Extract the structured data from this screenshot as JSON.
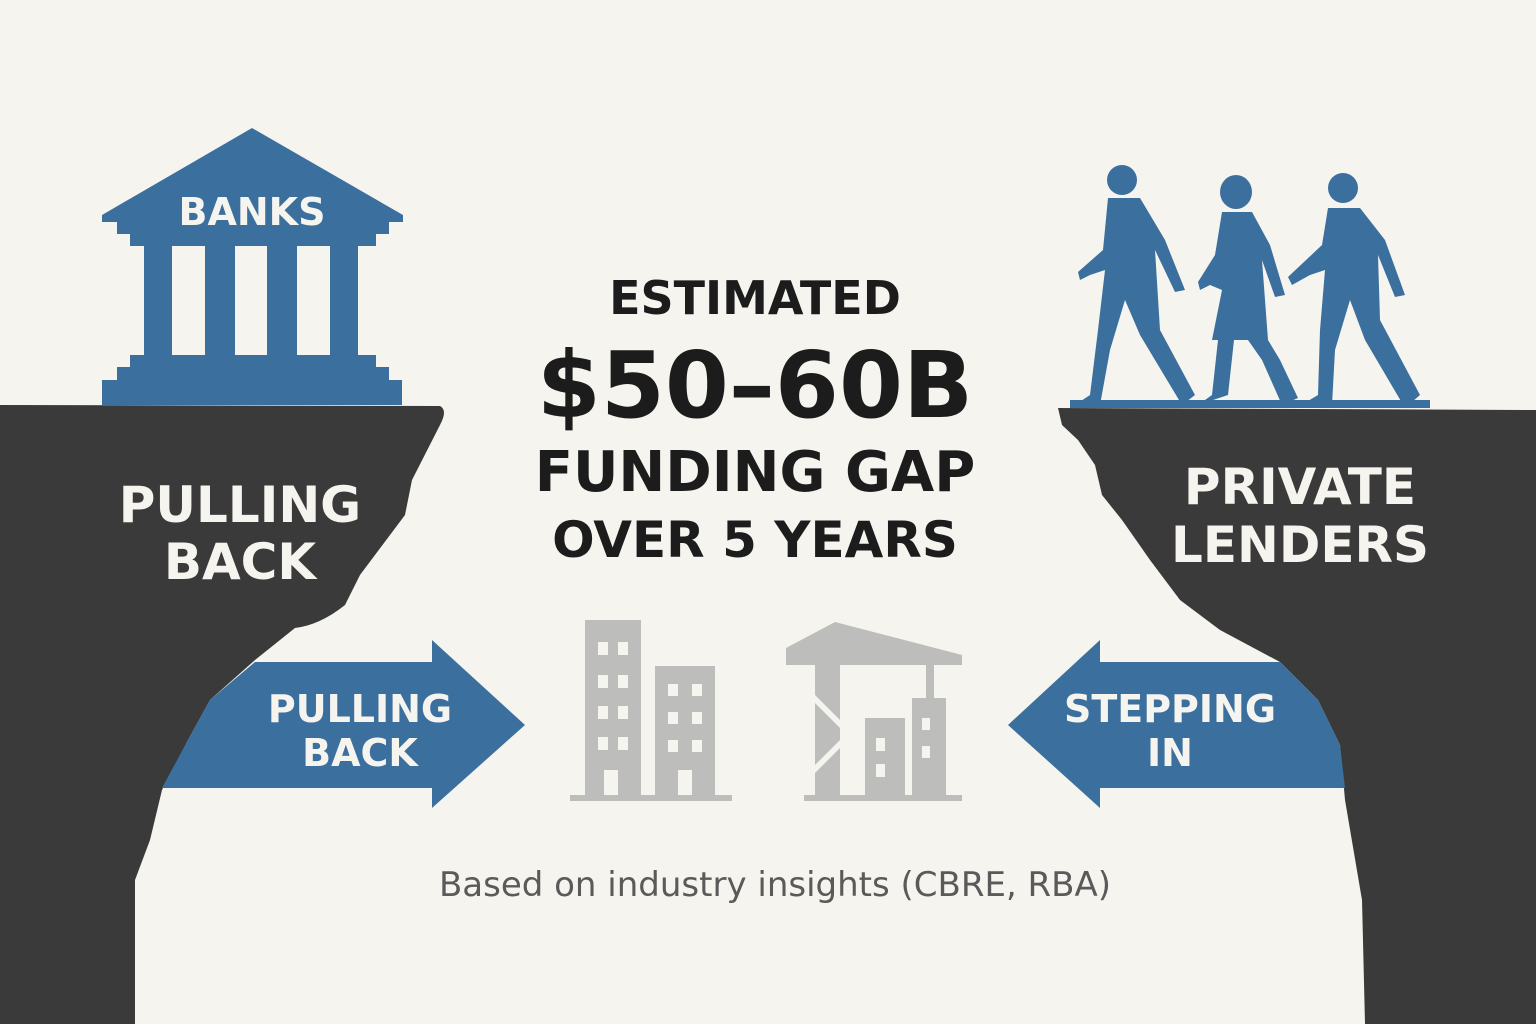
{
  "colors": {
    "background": "#f6f4ef",
    "cliff": "#3a3a3a",
    "accent_blue": "#3b6f9e",
    "building_gray": "#bdbdbb",
    "text_dark": "#1c1c1c"
  },
  "left": {
    "bank_label": "BANKS",
    "cliff_label_line1": "PULLING",
    "cliff_label_line2": "BACK",
    "arrow_line1": "PULLING",
    "arrow_line2": "BACK",
    "icon": "bank-building-icon"
  },
  "center": {
    "line1": "ESTIMATED",
    "line2": "$50–60B",
    "line3": "FUNDING GAP",
    "line4": "OVER 5 YEARS",
    "icons": [
      "office-buildings-icon",
      "construction-crane-icon"
    ]
  },
  "right": {
    "cliff_label_line1": "PRIVATE",
    "cliff_label_line2": "LENDERS",
    "arrow_line1": "STEPPING",
    "arrow_line2": "IN",
    "icon": "walking-people-icon"
  },
  "footer": {
    "source": "Based on industry insights (CBRE, RBA)"
  }
}
